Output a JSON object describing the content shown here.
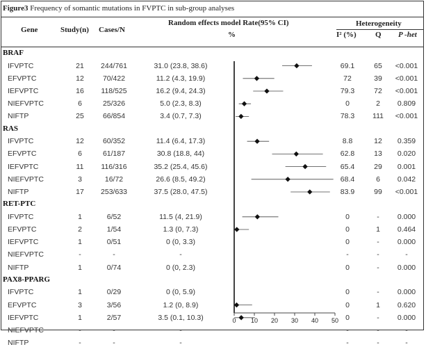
{
  "caption": {
    "label": "Figure3",
    "text": " Frequency of somantic mutations in FVPTC in sub-group analyses"
  },
  "header": {
    "gene": "Gene",
    "study": "Study(n)",
    "cases": "Cases/N",
    "rate": "Random effects model Rate(95% CI)",
    "rate_unit": "%",
    "heterogeneity": "Heterogeneity",
    "i2": "I² (%)",
    "q": "Q",
    "phet": "P -het"
  },
  "chart_data": {
    "type": "forest",
    "xlim": [
      0,
      50
    ],
    "xticks": [
      0,
      10,
      20,
      30,
      40,
      50
    ],
    "groups": [
      {
        "name": "BRAF",
        "rows": [
          {
            "subgroup": "IFVPTC",
            "study": "21",
            "cases": "244/761",
            "rate_text": "31.0 (23.8, 38.6)",
            "rate": 31.0,
            "lo": 23.8,
            "hi": 38.6,
            "i2": "69.1",
            "q": "65",
            "p": "<0.001"
          },
          {
            "subgroup": "EFVPTC",
            "study": "12",
            "cases": "70/422",
            "rate_text": "11.2 (4.3, 19.9)",
            "rate": 11.2,
            "lo": 4.3,
            "hi": 19.9,
            "i2": "72",
            "q": "39",
            "p": "<0.001"
          },
          {
            "subgroup": "IEFVPTC",
            "study": "16",
            "cases": "118/525",
            "rate_text": "16.2 (9.4, 24.3)",
            "rate": 16.2,
            "lo": 9.4,
            "hi": 24.3,
            "i2": "79.3",
            "q": "72",
            "p": "<0.001"
          },
          {
            "subgroup": "NIEFVPTC",
            "study": "6",
            "cases": "25/326",
            "rate_text": "5.0 (2.3, 8.3)",
            "rate": 5.0,
            "lo": 2.3,
            "hi": 8.3,
            "i2": "0",
            "q": "2",
            "p": "0.809"
          },
          {
            "subgroup": "NIFTP",
            "study": "25",
            "cases": "66/854",
            "rate_text": "3.4 (0.7, 7.3)",
            "rate": 3.4,
            "lo": 0.7,
            "hi": 7.3,
            "i2": "78.3",
            "q": "111",
            "p": "<0.001"
          }
        ]
      },
      {
        "name": "RAS",
        "rows": [
          {
            "subgroup": "IFVPTC",
            "study": "12",
            "cases": "60/352",
            "rate_text": "11.4 (6.4, 17.3)",
            "rate": 11.4,
            "lo": 6.4,
            "hi": 17.3,
            "i2": "8.8",
            "q": "12",
            "p": "0.359"
          },
          {
            "subgroup": "EFVPTC",
            "study": "6",
            "cases": "61/187",
            "rate_text": "30.8 (18.8, 44)",
            "rate": 30.8,
            "lo": 18.8,
            "hi": 44,
            "i2": "62.8",
            "q": "13",
            "p": "0.020"
          },
          {
            "subgroup": "IEFVPTC",
            "study": "11",
            "cases": "116/316",
            "rate_text": "35.2 (25.4, 45.6)",
            "rate": 35.2,
            "lo": 25.4,
            "hi": 45.6,
            "i2": "65.4",
            "q": "29",
            "p": "0.001"
          },
          {
            "subgroup": "NIEFVPTC",
            "study": "3",
            "cases": "16/72",
            "rate_text": "26.6 (8.5, 49.2)",
            "rate": 26.6,
            "lo": 8.5,
            "hi": 49.2,
            "i2": "68.4",
            "q": "6",
            "p": "0.042"
          },
          {
            "subgroup": "NIFTP",
            "study": "17",
            "cases": "253/633",
            "rate_text": "37.5 (28.0, 47.5)",
            "rate": 37.5,
            "lo": 28.0,
            "hi": 47.5,
            "i2": "83.9",
            "q": "99",
            "p": "<0.001"
          }
        ]
      },
      {
        "name": "RET-PTC",
        "rows": [
          {
            "subgroup": "IFVPTC",
            "study": "1",
            "cases": "6/52",
            "rate_text": "11.5 (4, 21.9)",
            "rate": 11.5,
            "lo": 4,
            "hi": 21.9,
            "i2": "0",
            "q": "-",
            "p": "0.000"
          },
          {
            "subgroup": "EFVPTC",
            "study": "2",
            "cases": "1/54",
            "rate_text": "1.3 (0, 7.3)",
            "rate": 1.3,
            "lo": 0,
            "hi": 7.3,
            "i2": "0",
            "q": "1",
            "p": "0.464"
          },
          {
            "subgroup": "IEFVPTC",
            "study": "1",
            "cases": "0/51",
            "rate_text": "0 (0, 3.3)",
            "rate": null,
            "lo": null,
            "hi": null,
            "i2": "0",
            "q": "-",
            "p": "0.000"
          },
          {
            "subgroup": "NIEFVPTC",
            "study": "-",
            "cases": "-",
            "rate_text": "-",
            "rate": null,
            "lo": null,
            "hi": null,
            "i2": "-",
            "q": "-",
            "p": "-"
          },
          {
            "subgroup": "NIFTP",
            "study": "1",
            "cases": "0/74",
            "rate_text": "0 (0, 2.3)",
            "rate": null,
            "lo": null,
            "hi": null,
            "i2": "0",
            "q": "-",
            "p": "0.000"
          }
        ]
      },
      {
        "name": "PAX8-PPARG",
        "rows": [
          {
            "subgroup": "IFVPTC",
            "study": "1",
            "cases": "0/29",
            "rate_text": "0 (0, 5.9)",
            "rate": null,
            "lo": null,
            "hi": null,
            "i2": "0",
            "q": "-",
            "p": "0.000"
          },
          {
            "subgroup": "EFVPTC",
            "study": "3",
            "cases": "3/56",
            "rate_text": "1.2 (0, 8.9)",
            "rate": 1.2,
            "lo": 0,
            "hi": 8.9,
            "i2": "0",
            "q": "1",
            "p": "0.620"
          },
          {
            "subgroup": "IEFVPTC",
            "study": "1",
            "cases": "2/57",
            "rate_text": "3.5 (0.1, 10.3)",
            "rate": 3.5,
            "lo": 0.1,
            "hi": 10.3,
            "i2": "0",
            "q": "-",
            "p": "0.000"
          },
          {
            "subgroup": "NIEFVPTC",
            "study": "-",
            "cases": "-",
            "rate_text": "-",
            "rate": null,
            "lo": null,
            "hi": null,
            "i2": "-",
            "q": "-",
            "p": "-"
          },
          {
            "subgroup": "NIFTP",
            "study": "-",
            "cases": "-",
            "rate_text": "-",
            "rate": null,
            "lo": null,
            "hi": null,
            "i2": "-",
            "q": "-",
            "p": "-"
          }
        ]
      }
    ]
  }
}
